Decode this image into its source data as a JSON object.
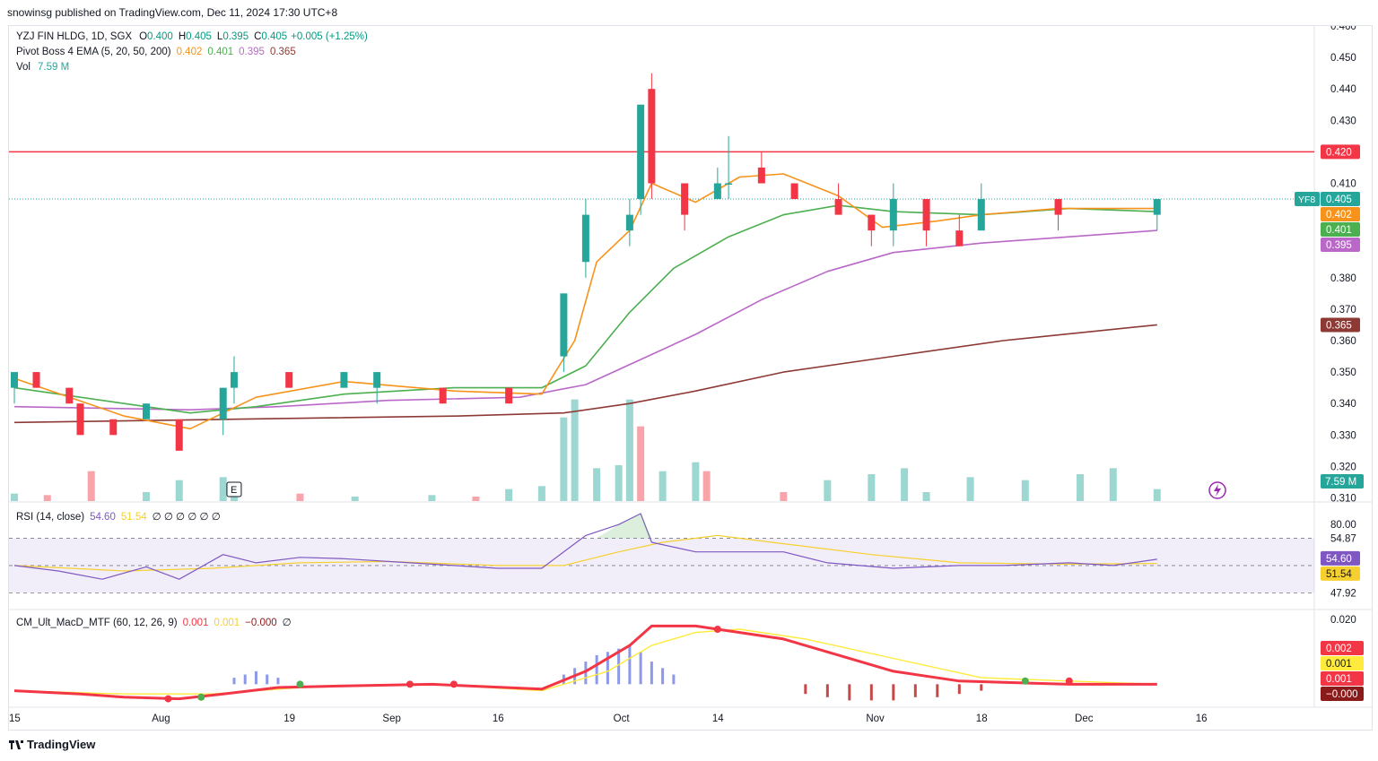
{
  "header": {
    "text": "snowinsg published on TradingView.com, Dec 11, 2024 17:30 UTC+8"
  },
  "footer": {
    "brand": "TradingView"
  },
  "legend": {
    "symbol": "YZJ FIN HLDG, 1D, SGX",
    "ohlc": [
      {
        "k": "O",
        "v": "0.400"
      },
      {
        "k": "H",
        "v": "0.405"
      },
      {
        "k": "L",
        "v": "0.395"
      },
      {
        "k": "C",
        "v": "0.405"
      }
    ],
    "change": "+0.005 (+1.25%)",
    "ema_label": "Pivot Boss 4 EMA (5, 20, 50, 200)",
    "ema_values": [
      "0.402",
      "0.401",
      "0.395",
      "0.365"
    ],
    "vol_label": "Vol",
    "vol_value": "7.59 M",
    "rsi_label": "RSI (14, close)",
    "rsi_values": [
      "54.60",
      "51.54"
    ],
    "rsi_extra": "∅ ∅ ∅ ∅ ∅ ∅",
    "macd_label": "CM_Ult_MacD_MTF (60, 12, 26, 9)",
    "macd_values": [
      "0.001",
      "0.001",
      "−0.000"
    ],
    "macd_extra": "∅"
  },
  "colors": {
    "up": "#26a69a",
    "down": "#f23645",
    "ema5": "#f7931a",
    "ema20": "#4caf50",
    "ema50": "#ba68c8",
    "ema200": "#8d3a35",
    "level": "#f23645",
    "rsi": "#7e57c2",
    "rsi_ma": "#f5d02f",
    "macd": "#f23645",
    "signal": "#ffeb3b"
  },
  "chart_data": {
    "type": "candlestick",
    "price_axis": {
      "ticks": [
        "0.460",
        "0.450",
        "0.440",
        "0.430",
        "0.410",
        "0.380",
        "0.370",
        "0.360",
        "0.350",
        "0.340",
        "0.330",
        "0.320",
        "0.310"
      ],
      "range": [
        0.309,
        0.46
      ]
    },
    "x_axis": {
      "labels": [
        {
          "label": "15",
          "day": 0
        },
        {
          "label": "Aug",
          "day": 13
        },
        {
          "label": "19",
          "day": 25
        },
        {
          "label": "Sep",
          "day": 34
        },
        {
          "label": "16",
          "day": 44
        },
        {
          "label": "Oct",
          "day": 55
        },
        {
          "label": "14",
          "day": 64
        },
        {
          "label": "Nov",
          "day": 78
        },
        {
          "label": "18",
          "day": 88
        },
        {
          "label": "Dec",
          "day": 97
        },
        {
          "label": "16",
          "day": 108
        }
      ],
      "range_days": [
        0,
        113
      ]
    },
    "candles": [
      {
        "d": 0,
        "o": 0.345,
        "h": 0.35,
        "l": 0.34,
        "c": 0.35
      },
      {
        "d": 2,
        "o": 0.35,
        "h": 0.35,
        "l": 0.345,
        "c": 0.345
      },
      {
        "d": 5,
        "o": 0.345,
        "h": 0.345,
        "l": 0.34,
        "c": 0.34
      },
      {
        "d": 6,
        "o": 0.34,
        "h": 0.34,
        "l": 0.33,
        "c": 0.33
      },
      {
        "d": 9,
        "o": 0.335,
        "h": 0.335,
        "l": 0.33,
        "c": 0.33
      },
      {
        "d": 12,
        "o": 0.335,
        "h": 0.34,
        "l": 0.335,
        "c": 0.34
      },
      {
        "d": 15,
        "o": 0.335,
        "h": 0.335,
        "l": 0.325,
        "c": 0.325
      },
      {
        "d": 19,
        "o": 0.335,
        "h": 0.345,
        "l": 0.33,
        "c": 0.345
      },
      {
        "d": 20,
        "o": 0.345,
        "h": 0.355,
        "l": 0.34,
        "c": 0.35
      },
      {
        "d": 25,
        "o": 0.35,
        "h": 0.35,
        "l": 0.345,
        "c": 0.345
      },
      {
        "d": 30,
        "o": 0.345,
        "h": 0.35,
        "l": 0.345,
        "c": 0.35
      },
      {
        "d": 33,
        "o": 0.345,
        "h": 0.35,
        "l": 0.34,
        "c": 0.35
      },
      {
        "d": 39,
        "o": 0.345,
        "h": 0.345,
        "l": 0.34,
        "c": 0.34
      },
      {
        "d": 45,
        "o": 0.345,
        "h": 0.345,
        "l": 0.34,
        "c": 0.34
      },
      {
        "d": 50,
        "o": 0.355,
        "h": 0.375,
        "l": 0.35,
        "c": 0.375
      },
      {
        "d": 52,
        "o": 0.385,
        "h": 0.405,
        "l": 0.38,
        "c": 0.4
      },
      {
        "d": 56,
        "o": 0.395,
        "h": 0.405,
        "l": 0.39,
        "c": 0.4
      },
      {
        "d": 57,
        "o": 0.405,
        "h": 0.435,
        "l": 0.4,
        "c": 0.435
      },
      {
        "d": 58,
        "o": 0.44,
        "h": 0.445,
        "l": 0.405,
        "c": 0.41
      },
      {
        "d": 61,
        "o": 0.41,
        "h": 0.41,
        "l": 0.395,
        "c": 0.4
      },
      {
        "d": 64,
        "o": 0.405,
        "h": 0.415,
        "l": 0.405,
        "c": 0.41
      },
      {
        "d": 65,
        "o": 0.41,
        "h": 0.425,
        "l": 0.405,
        "c": 0.41
      },
      {
        "d": 68,
        "o": 0.415,
        "h": 0.42,
        "l": 0.41,
        "c": 0.41
      },
      {
        "d": 71,
        "o": 0.41,
        "h": 0.41,
        "l": 0.405,
        "c": 0.405
      },
      {
        "d": 75,
        "o": 0.405,
        "h": 0.41,
        "l": 0.4,
        "c": 0.4
      },
      {
        "d": 78,
        "o": 0.4,
        "h": 0.4,
        "l": 0.39,
        "c": 0.395
      },
      {
        "d": 80,
        "o": 0.395,
        "h": 0.41,
        "l": 0.39,
        "c": 0.405
      },
      {
        "d": 83,
        "o": 0.405,
        "h": 0.405,
        "l": 0.39,
        "c": 0.395
      },
      {
        "d": 86,
        "o": 0.395,
        "h": 0.4,
        "l": 0.39,
        "c": 0.39
      },
      {
        "d": 88,
        "o": 0.395,
        "h": 0.41,
        "l": 0.395,
        "c": 0.405
      },
      {
        "d": 95,
        "o": 0.405,
        "h": 0.405,
        "l": 0.395,
        "c": 0.4
      },
      {
        "d": 104,
        "o": 0.4,
        "h": 0.405,
        "l": 0.395,
        "c": 0.405
      }
    ],
    "ema": {
      "ema5": [
        [
          0,
          0.348
        ],
        [
          10,
          0.336
        ],
        [
          16,
          0.332
        ],
        [
          22,
          0.342
        ],
        [
          30,
          0.347
        ],
        [
          40,
          0.344
        ],
        [
          48,
          0.343
        ],
        [
          51,
          0.36
        ],
        [
          53,
          0.385
        ],
        [
          56,
          0.395
        ],
        [
          58,
          0.41
        ],
        [
          62,
          0.404
        ],
        [
          66,
          0.412
        ],
        [
          70,
          0.413
        ],
        [
          75,
          0.406
        ],
        [
          79,
          0.396
        ],
        [
          84,
          0.398
        ],
        [
          88,
          0.4
        ],
        [
          95,
          0.402
        ],
        [
          104,
          0.402
        ]
      ],
      "ema20": [
        [
          0,
          0.345
        ],
        [
          10,
          0.34
        ],
        [
          16,
          0.337
        ],
        [
          22,
          0.339
        ],
        [
          30,
          0.343
        ],
        [
          40,
          0.345
        ],
        [
          48,
          0.345
        ],
        [
          52,
          0.352
        ],
        [
          56,
          0.369
        ],
        [
          60,
          0.383
        ],
        [
          65,
          0.393
        ],
        [
          70,
          0.4
        ],
        [
          75,
          0.403
        ],
        [
          80,
          0.401
        ],
        [
          88,
          0.4
        ],
        [
          96,
          0.402
        ],
        [
          104,
          0.401
        ]
      ],
      "ema50": [
        [
          0,
          0.339
        ],
        [
          16,
          0.338
        ],
        [
          24,
          0.339
        ],
        [
          34,
          0.341
        ],
        [
          46,
          0.342
        ],
        [
          52,
          0.346
        ],
        [
          57,
          0.354
        ],
        [
          62,
          0.362
        ],
        [
          68,
          0.373
        ],
        [
          74,
          0.382
        ],
        [
          80,
          0.388
        ],
        [
          88,
          0.391
        ],
        [
          96,
          0.393
        ],
        [
          104,
          0.395
        ]
      ],
      "ema200": [
        [
          0,
          0.334
        ],
        [
          20,
          0.335
        ],
        [
          40,
          0.336
        ],
        [
          50,
          0.337
        ],
        [
          56,
          0.34
        ],
        [
          62,
          0.344
        ],
        [
          70,
          0.35
        ],
        [
          80,
          0.355
        ],
        [
          90,
          0.36
        ],
        [
          104,
          0.365
        ]
      ]
    },
    "current_price": 0.405,
    "level_line": 0.42,
    "price_badges": [
      {
        "label": "0.420",
        "value": 0.42,
        "color": "#f23645"
      },
      {
        "label": "0.405",
        "value": 0.405,
        "color": "#26a69a",
        "tag": "YF8"
      },
      {
        "label": "0.402",
        "value": 0.402,
        "color": "#f7931a"
      },
      {
        "label": "0.401",
        "value": 0.401,
        "color": "#4caf50"
      },
      {
        "label": "0.395",
        "value": 0.395,
        "color": "#ba68c8"
      },
      {
        "label": "0.365",
        "value": 0.365,
        "color": "#8d3a35"
      }
    ],
    "volume": {
      "badge": "7.59 M",
      "bars": [
        [
          0,
          0.25,
          1
        ],
        [
          3,
          0.2,
          0
        ],
        [
          7,
          1.0,
          0
        ],
        [
          12,
          0.3,
          1
        ],
        [
          15,
          0.7,
          1
        ],
        [
          19,
          0.8,
          1
        ],
        [
          20,
          0.35,
          1
        ],
        [
          26,
          0.25,
          0
        ],
        [
          31,
          0.15,
          1
        ],
        [
          38,
          0.2,
          1
        ],
        [
          42,
          0.15,
          0
        ],
        [
          45,
          0.4,
          1
        ],
        [
          48,
          0.5,
          1
        ],
        [
          50,
          2.8,
          1
        ],
        [
          51,
          3.4,
          1
        ],
        [
          53,
          1.1,
          1
        ],
        [
          55,
          1.2,
          1
        ],
        [
          56,
          3.4,
          1
        ],
        [
          57,
          2.5,
          0
        ],
        [
          59,
          1.0,
          1
        ],
        [
          62,
          1.3,
          1
        ],
        [
          63,
          1.0,
          0
        ],
        [
          70,
          0.3,
          0
        ],
        [
          74,
          0.7,
          1
        ],
        [
          78,
          0.9,
          1
        ],
        [
          81,
          1.1,
          1
        ],
        [
          83,
          0.3,
          1
        ],
        [
          87,
          0.8,
          1
        ],
        [
          92,
          0.7,
          1
        ],
        [
          97,
          0.9,
          1
        ],
        [
          100,
          1.1,
          1
        ],
        [
          104,
          0.4,
          1
        ]
      ]
    },
    "rsi": {
      "axis_labels": [
        "80.00",
        "54.87",
        "47.92"
      ],
      "badges": [
        {
          "label": "54.60",
          "value": 54.6
        },
        {
          "label": "51.54",
          "value": 51.54
        }
      ],
      "band": [
        30,
        70
      ],
      "line": [
        [
          0,
          50
        ],
        [
          4,
          46
        ],
        [
          8,
          40
        ],
        [
          12,
          49
        ],
        [
          15,
          40
        ],
        [
          19,
          58
        ],
        [
          22,
          52
        ],
        [
          26,
          56
        ],
        [
          30,
          55
        ],
        [
          36,
          52
        ],
        [
          40,
          50
        ],
        [
          44,
          48
        ],
        [
          48,
          48
        ],
        [
          52,
          72
        ],
        [
          55,
          80
        ],
        [
          57,
          88
        ],
        [
          58,
          67
        ],
        [
          62,
          60
        ],
        [
          66,
          60
        ],
        [
          70,
          60
        ],
        [
          74,
          52
        ],
        [
          80,
          48
        ],
        [
          86,
          50
        ],
        [
          90,
          50
        ],
        [
          96,
          52
        ],
        [
          100,
          50
        ],
        [
          104,
          54.6
        ]
      ],
      "ma": [
        [
          0,
          50
        ],
        [
          10,
          46
        ],
        [
          18,
          48
        ],
        [
          26,
          52
        ],
        [
          34,
          53
        ],
        [
          44,
          50
        ],
        [
          50,
          50
        ],
        [
          55,
          60
        ],
        [
          59,
          67
        ],
        [
          64,
          72
        ],
        [
          70,
          66
        ],
        [
          78,
          58
        ],
        [
          86,
          52
        ],
        [
          96,
          51
        ],
        [
          104,
          51.54
        ]
      ]
    },
    "macd": {
      "axis_labels": [
        "0.020"
      ],
      "badges": [
        {
          "label": "0.002",
          "color": "#f23645"
        },
        {
          "label": "0.001",
          "color": "#ffeb3b"
        },
        {
          "label": "0.001",
          "color": "#f23645"
        },
        {
          "label": "−0.000",
          "color": "#8b1a1a"
        }
      ],
      "line": [
        [
          0,
          -0.002
        ],
        [
          6,
          -0.003
        ],
        [
          10,
          -0.004
        ],
        [
          15,
          -0.0045
        ],
        [
          19,
          -0.003
        ],
        [
          24,
          -0.001
        ],
        [
          30,
          -0.0005
        ],
        [
          38,
          0.0
        ],
        [
          48,
          -0.0015
        ],
        [
          52,
          0.004
        ],
        [
          56,
          0.012
        ],
        [
          58,
          0.018
        ],
        [
          62,
          0.018
        ],
        [
          66,
          0.016
        ],
        [
          70,
          0.014
        ],
        [
          74,
          0.01
        ],
        [
          80,
          0.004
        ],
        [
          86,
          0.001
        ],
        [
          96,
          0.0
        ],
        [
          104,
          0.0
        ]
      ],
      "signal": [
        [
          0,
          -0.002
        ],
        [
          10,
          -0.003
        ],
        [
          18,
          -0.003
        ],
        [
          26,
          -0.001
        ],
        [
          38,
          0.0
        ],
        [
          48,
          -0.002
        ],
        [
          54,
          0.004
        ],
        [
          58,
          0.012
        ],
        [
          62,
          0.016
        ],
        [
          66,
          0.017
        ],
        [
          72,
          0.014
        ],
        [
          80,
          0.008
        ],
        [
          88,
          0.002
        ],
        [
          96,
          0.001
        ],
        [
          104,
          0.0
        ]
      ],
      "hist": [
        [
          20,
          0.002,
          1
        ],
        [
          21,
          0.003,
          1
        ],
        [
          22,
          0.004,
          1
        ],
        [
          23,
          0.003,
          1
        ],
        [
          24,
          0.002,
          1
        ],
        [
          50,
          0.003,
          1
        ],
        [
          51,
          0.005,
          1
        ],
        [
          52,
          0.007,
          1
        ],
        [
          53,
          0.009,
          1
        ],
        [
          54,
          0.01,
          1
        ],
        [
          55,
          0.011,
          1
        ],
        [
          56,
          0.012,
          1
        ],
        [
          57,
          0.01,
          1
        ],
        [
          58,
          0.007,
          1
        ],
        [
          59,
          0.005,
          1
        ],
        [
          60,
          0.003,
          1
        ],
        [
          72,
          -0.003,
          0
        ],
        [
          74,
          -0.004,
          0
        ],
        [
          76,
          -0.005,
          0
        ],
        [
          78,
          -0.005,
          0
        ],
        [
          80,
          -0.005,
          0
        ],
        [
          82,
          -0.004,
          0
        ],
        [
          84,
          -0.004,
          0
        ],
        [
          86,
          -0.003,
          0
        ],
        [
          88,
          -0.002,
          0
        ]
      ],
      "dots": [
        [
          14,
          -0.0045,
          "#f23645"
        ],
        [
          17,
          -0.004,
          "#4caf50"
        ],
        [
          26,
          0.0,
          "#4caf50"
        ],
        [
          36,
          0.0,
          "#f23645"
        ],
        [
          40,
          0.0,
          "#f23645"
        ],
        [
          64,
          0.017,
          "#f23645"
        ],
        [
          92,
          0.001,
          "#4caf50"
        ],
        [
          96,
          0.001,
          "#f23645"
        ]
      ]
    }
  }
}
